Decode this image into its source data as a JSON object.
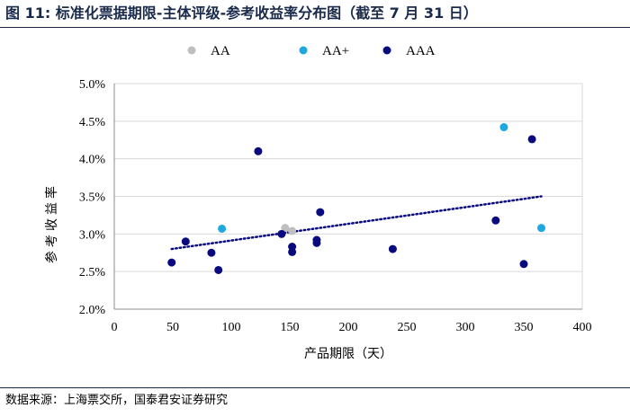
{
  "header": {
    "title": "图 11:  标准化票据期限-主体评级-参考收益率分布图（截至 7 月 31 日）"
  },
  "footer": {
    "source": "数据来源：上海票交所，国泰君安证券研究"
  },
  "colors": {
    "AA": "#bfbfbf",
    "AA+": "#1fa7e0",
    "AAA": "#0a0a80",
    "grid": "#d9d9d9",
    "trend": "#0a0a80"
  },
  "chart_data": {
    "type": "scatter",
    "title": "",
    "xlabel": "产品期限（天）",
    "ylabel": "参考收益率",
    "xlim": [
      0,
      400
    ],
    "ylim": [
      2.0,
      5.0
    ],
    "x_ticks": [
      "0",
      "50",
      "100",
      "150",
      "200",
      "250",
      "300",
      "350",
      "400"
    ],
    "y_ticks": [
      "2.0%",
      "2.5%",
      "3.0%",
      "3.5%",
      "4.0%",
      "4.5%",
      "5.0%"
    ],
    "grid": true,
    "legend": "top",
    "series": [
      {
        "name": "AA",
        "points": [
          [
            146,
            3.08
          ],
          [
            152,
            3.04
          ]
        ]
      },
      {
        "name": "AA+",
        "points": [
          [
            92,
            3.07
          ],
          [
            333,
            4.42
          ],
          [
            365,
            3.08
          ]
        ]
      },
      {
        "name": "AAA",
        "points": [
          [
            49,
            2.62
          ],
          [
            61,
            2.9
          ],
          [
            83,
            2.75
          ],
          [
            89,
            2.52
          ],
          [
            123,
            4.1
          ],
          [
            143,
            3.0
          ],
          [
            152,
            2.83
          ],
          [
            152,
            2.76
          ],
          [
            173,
            2.92
          ],
          [
            173,
            2.88
          ],
          [
            176,
            3.29
          ],
          [
            238,
            2.8
          ],
          [
            326,
            3.18
          ],
          [
            350,
            2.6
          ],
          [
            357,
            4.26
          ]
        ]
      }
    ],
    "trendline": {
      "series": "AAA",
      "style": "dotted",
      "x_range": [
        49,
        365
      ],
      "y_values": [
        2.8,
        3.5
      ]
    }
  }
}
